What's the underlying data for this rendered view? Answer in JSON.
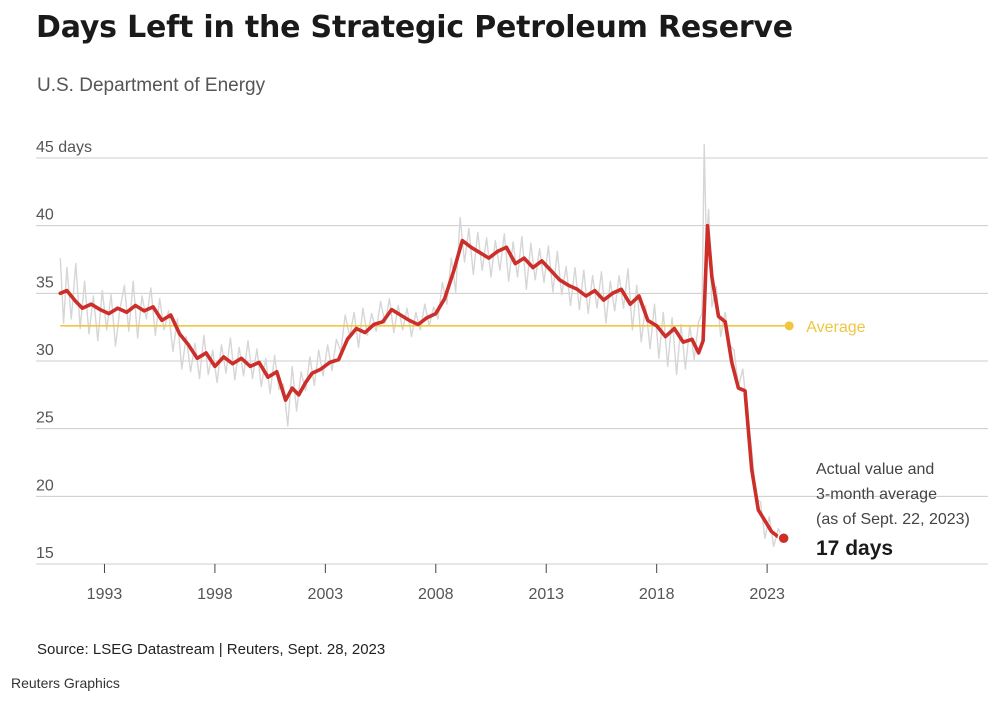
{
  "header": {
    "title": "Days Left in the Strategic Petroleum Reserve",
    "subtitle": "U.S. Department of Energy"
  },
  "footer": {
    "source": "Source: LSEG Datastream | Reuters, Sept. 28, 2023",
    "credit": "Reuters Graphics"
  },
  "colors": {
    "line": "#cc2f2a",
    "raw": "#d6d6d6",
    "average": "#f0c541",
    "grid": "#cccccc",
    "text": "#555555"
  },
  "chart_data": {
    "type": "line",
    "title": "Days Left in the Strategic Petroleum Reserve",
    "xlabel": "",
    "ylabel": "days",
    "ylim": [
      15,
      45
    ],
    "xlim": [
      1989.9,
      2033
    ],
    "y_ticks": [
      {
        "value": 45,
        "label": "45 days"
      },
      {
        "value": 40,
        "label": "40"
      },
      {
        "value": 35,
        "label": "35"
      },
      {
        "value": 30,
        "label": "30"
      },
      {
        "value": 25,
        "label": "25"
      },
      {
        "value": 20,
        "label": "20"
      },
      {
        "value": 15,
        "label": "15"
      }
    ],
    "x_ticks": [
      {
        "value": 1993,
        "label": "1993"
      },
      {
        "value": 1998,
        "label": "1998"
      },
      {
        "value": 2003,
        "label": "2003"
      },
      {
        "value": 2008,
        "label": "2008"
      },
      {
        "value": 2013,
        "label": "2013"
      },
      {
        "value": 2018,
        "label": "2018"
      },
      {
        "value": 2023,
        "label": "2023"
      }
    ],
    "grid": true,
    "average": {
      "value": 32.6,
      "label": "Average",
      "x_start": 1991,
      "x_end": 2024
    },
    "series": [
      {
        "name": "3-month average",
        "x": [
          1991.0,
          1991.3,
          1991.7,
          1992.0,
          1992.4,
          1992.8,
          1993.2,
          1993.6,
          1994.0,
          1994.4,
          1994.8,
          1995.2,
          1995.6,
          1996.0,
          1996.4,
          1996.8,
          1997.2,
          1997.6,
          1998.0,
          1998.4,
          1998.8,
          1999.2,
          1999.6,
          2000.0,
          2000.4,
          2000.8,
          2001.2,
          2001.5,
          2001.8,
          2002.1,
          2002.4,
          2002.8,
          2003.2,
          2003.6,
          2004.0,
          2004.4,
          2004.8,
          2005.2,
          2005.6,
          2006.0,
          2006.4,
          2006.8,
          2007.2,
          2007.6,
          2008.0,
          2008.4,
          2008.8,
          2009.2,
          2009.6,
          2010.0,
          2010.4,
          2010.8,
          2011.2,
          2011.6,
          2012.0,
          2012.4,
          2012.8,
          2013.2,
          2013.6,
          2014.0,
          2014.4,
          2014.8,
          2015.2,
          2015.6,
          2016.0,
          2016.4,
          2016.8,
          2017.2,
          2017.6,
          2018.0,
          2018.4,
          2018.8,
          2019.2,
          2019.6,
          2019.9,
          2020.1,
          2020.3,
          2020.5,
          2020.8,
          2021.1,
          2021.4,
          2021.7,
          2022.0,
          2022.3,
          2022.6,
          2022.9,
          2023.2,
          2023.5,
          2023.75
        ],
        "values": [
          35.0,
          35.2,
          34.4,
          33.9,
          34.2,
          33.8,
          33.5,
          33.9,
          33.6,
          34.1,
          33.7,
          34.0,
          33.0,
          33.4,
          32.0,
          31.2,
          30.2,
          30.6,
          29.6,
          30.3,
          29.8,
          30.2,
          29.6,
          29.9,
          28.8,
          29.2,
          27.1,
          28.0,
          27.5,
          28.4,
          29.1,
          29.4,
          29.9,
          30.1,
          31.6,
          32.4,
          32.1,
          32.7,
          32.9,
          33.8,
          33.4,
          33.0,
          32.7,
          33.2,
          33.5,
          34.6,
          36.6,
          38.9,
          38.4,
          38.0,
          37.6,
          38.1,
          38.4,
          37.2,
          37.6,
          36.9,
          37.4,
          36.7,
          36.0,
          35.6,
          35.3,
          34.8,
          35.2,
          34.5,
          35.0,
          35.3,
          34.2,
          34.8,
          33.0,
          32.6,
          31.8,
          32.4,
          31.4,
          31.6,
          30.6,
          31.5,
          40.0,
          36.2,
          33.3,
          32.9,
          29.9,
          28.0,
          27.8,
          22.0,
          19.0,
          18.2,
          17.4,
          17.0,
          16.9
        ]
      },
      {
        "name": "Actual value",
        "x": [
          1991.0,
          1991.15,
          1991.3,
          1991.5,
          1991.7,
          1991.9,
          1992.1,
          1992.3,
          1992.5,
          1992.7,
          1992.9,
          1993.1,
          1993.3,
          1993.5,
          1993.7,
          1993.9,
          1994.1,
          1994.3,
          1994.5,
          1994.7,
          1994.9,
          1995.1,
          1995.3,
          1995.5,
          1995.7,
          1995.9,
          1996.1,
          1996.3,
          1996.5,
          1996.7,
          1996.9,
          1997.1,
          1997.3,
          1997.5,
          1997.7,
          1997.9,
          1998.1,
          1998.3,
          1998.5,
          1998.7,
          1998.9,
          1999.1,
          1999.3,
          1999.5,
          1999.7,
          1999.9,
          2000.1,
          2000.3,
          2000.5,
          2000.7,
          2000.9,
          2001.1,
          2001.3,
          2001.5,
          2001.7,
          2001.9,
          2002.1,
          2002.3,
          2002.5,
          2002.7,
          2002.9,
          2003.1,
          2003.3,
          2003.5,
          2003.7,
          2003.9,
          2004.1,
          2004.3,
          2004.5,
          2004.7,
          2004.9,
          2005.1,
          2005.3,
          2005.5,
          2005.7,
          2005.9,
          2006.1,
          2006.3,
          2006.5,
          2006.7,
          2006.9,
          2007.1,
          2007.3,
          2007.5,
          2007.7,
          2007.9,
          2008.1,
          2008.3,
          2008.5,
          2008.7,
          2008.9,
          2009.1,
          2009.3,
          2009.5,
          2009.7,
          2009.9,
          2010.1,
          2010.3,
          2010.5,
          2010.7,
          2010.9,
          2011.1,
          2011.3,
          2011.5,
          2011.7,
          2011.9,
          2012.1,
          2012.3,
          2012.5,
          2012.7,
          2012.9,
          2013.1,
          2013.3,
          2013.5,
          2013.7,
          2013.9,
          2014.1,
          2014.3,
          2014.5,
          2014.7,
          2014.9,
          2015.1,
          2015.3,
          2015.5,
          2015.7,
          2015.9,
          2016.1,
          2016.3,
          2016.5,
          2016.7,
          2016.9,
          2017.1,
          2017.3,
          2017.5,
          2017.7,
          2017.9,
          2018.1,
          2018.3,
          2018.5,
          2018.7,
          2018.9,
          2019.1,
          2019.3,
          2019.5,
          2019.7,
          2019.9,
          2020.05,
          2020.15,
          2020.25,
          2020.35,
          2020.5,
          2020.7,
          2020.9,
          2021.1,
          2021.3,
          2021.5,
          2021.7,
          2021.9,
          2022.1,
          2022.3,
          2022.5,
          2022.7,
          2022.9,
          2023.1,
          2023.3,
          2023.5,
          2023.7
        ],
        "values": [
          37.6,
          32.8,
          36.9,
          33.1,
          37.2,
          32.4,
          35.9,
          32.0,
          34.8,
          31.5,
          35.2,
          32.3,
          34.9,
          31.1,
          33.8,
          35.6,
          32.2,
          35.9,
          31.7,
          34.8,
          33.1,
          35.4,
          31.9,
          34.6,
          32.3,
          33.7,
          30.7,
          33.1,
          29.4,
          31.8,
          29.2,
          31.3,
          28.7,
          31.9,
          29.0,
          30.8,
          28.4,
          31.2,
          29.1,
          31.7,
          28.6,
          31.0,
          28.9,
          31.5,
          28.7,
          30.9,
          28.1,
          30.2,
          27.6,
          30.4,
          27.9,
          28.3,
          25.2,
          29.6,
          26.3,
          29.2,
          27.8,
          30.3,
          28.2,
          30.8,
          28.9,
          31.2,
          29.3,
          31.6,
          30.7,
          33.4,
          31.8,
          33.6,
          31.0,
          33.9,
          31.9,
          33.5,
          32.2,
          34.4,
          32.8,
          34.6,
          32.1,
          34.1,
          32.3,
          33.9,
          31.8,
          33.6,
          32.3,
          34.2,
          32.6,
          34.0,
          33.1,
          35.8,
          34.2,
          37.6,
          35.1,
          40.6,
          37.3,
          39.8,
          36.4,
          39.5,
          36.7,
          39.1,
          36.2,
          38.9,
          36.7,
          39.4,
          35.9,
          38.8,
          36.2,
          39.2,
          35.3,
          38.7,
          36.0,
          38.3,
          35.8,
          38.5,
          35.1,
          38.1,
          34.9,
          37.0,
          34.1,
          36.9,
          33.8,
          36.7,
          33.5,
          36.3,
          33.9,
          36.6,
          32.8,
          35.9,
          33.7,
          36.3,
          33.9,
          36.8,
          32.3,
          35.6,
          31.4,
          34.1,
          30.9,
          34.2,
          30.2,
          33.6,
          29.6,
          33.2,
          29.0,
          32.7,
          29.4,
          32.6,
          30.1,
          32.9,
          33.5,
          46.0,
          38.5,
          41.2,
          34.0,
          35.5,
          31.8,
          33.6,
          31.2,
          30.8,
          28.1,
          29.4,
          26.2,
          23.5,
          19.8,
          19.6,
          16.9,
          18.5,
          16.3,
          17.6,
          16.9
        ]
      }
    ],
    "annotation": {
      "lines": [
        "Actual value and",
        "3-month average",
        "(as of Sept. 22, 2023)"
      ],
      "value_label": "17 days",
      "point": {
        "x": 2023.75,
        "y": 16.9
      }
    }
  }
}
